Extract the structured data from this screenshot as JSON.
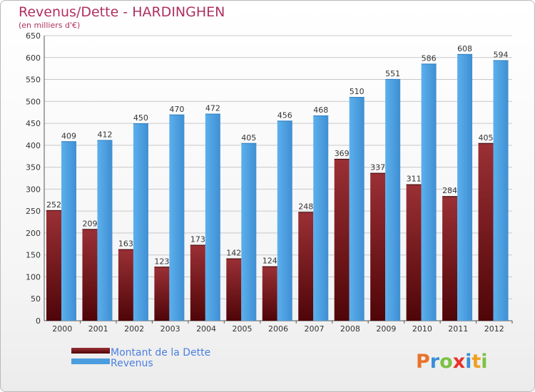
{
  "chart_data": {
    "type": "bar",
    "title": "Revenus/Dette - HARDINGHEN",
    "subtitle": "(en milliers d'€)",
    "categories": [
      "2000",
      "2001",
      "2002",
      "2003",
      "2004",
      "2005",
      "2006",
      "2007",
      "2008",
      "2009",
      "2010",
      "2011",
      "2012"
    ],
    "series": [
      {
        "name": "Montant de la Dette",
        "color": "#7a1a1f",
        "values": [
          252,
          209,
          163,
          123,
          173,
          142,
          124,
          248,
          369,
          337,
          311,
          284,
          405
        ]
      },
      {
        "name": "Revenus",
        "color": "#4a9ee0",
        "values": [
          409,
          412,
          450,
          470,
          472,
          405,
          456,
          468,
          510,
          551,
          586,
          608,
          594
        ]
      }
    ],
    "ylim": [
      0,
      650
    ],
    "yticks": [
      0,
      50,
      100,
      150,
      200,
      250,
      300,
      350,
      400,
      450,
      500,
      550,
      600,
      650
    ],
    "grid": true,
    "legend": "bottom-left"
  },
  "logo": {
    "text": "Proxiti",
    "letters": [
      "P",
      "r",
      "o",
      "x",
      "i",
      "t",
      "i"
    ],
    "colors": [
      "#e8732a",
      "#3a8fd8",
      "#7cc242",
      "#e8332a",
      "#3a8fd8",
      "#f0a020",
      "#7cc242"
    ]
  }
}
